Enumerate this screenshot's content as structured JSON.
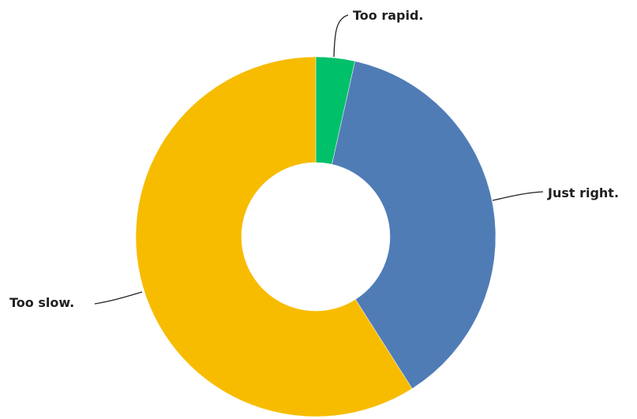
{
  "chart_data": {
    "type": "pie",
    "categories": [
      "Too rapid.",
      "Just right.",
      "Too slow."
    ],
    "values": [
      3.5,
      37.5,
      59.0
    ],
    "colors": [
      "#00c06a",
      "#507cb6",
      "#f7bc00"
    ]
  }
}
